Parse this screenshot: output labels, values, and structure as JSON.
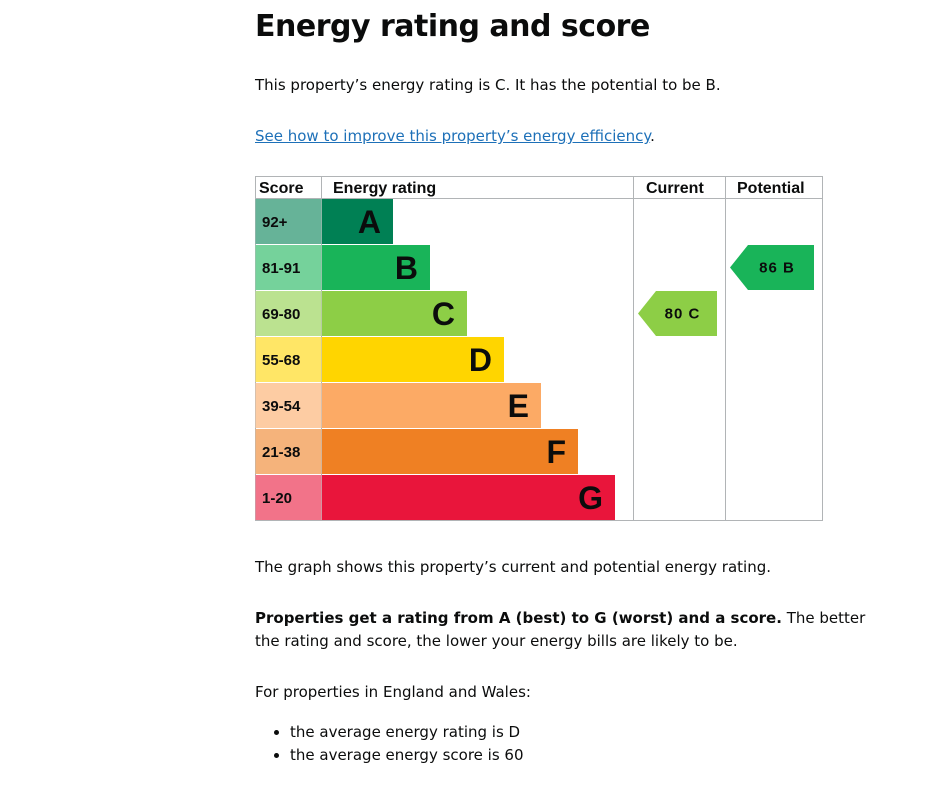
{
  "heading": "Energy rating and score",
  "intro": "This property’s energy rating is C. It has the potential to be B.",
  "improve_link": "See how to improve this property’s energy efficiency",
  "improve_period": ".",
  "chart_data": {
    "type": "table",
    "columns": [
      "Score",
      "Energy rating",
      "Current",
      "Potential"
    ],
    "bands": [
      {
        "score": "92+",
        "letter": "A",
        "color": "#008054",
        "score_bg": "#66b398"
      },
      {
        "score": "81-91",
        "letter": "B",
        "color": "#19b459",
        "score_bg": "#75d29b"
      },
      {
        "score": "69-80",
        "letter": "C",
        "color": "#8dce46",
        "score_bg": "#bbe290"
      },
      {
        "score": "55-68",
        "letter": "D",
        "color": "#ffd500",
        "score_bg": "#ffe666"
      },
      {
        "score": "39-54",
        "letter": "E",
        "color": "#fcaa65",
        "score_bg": "#fdcca3"
      },
      {
        "score": "21-38",
        "letter": "F",
        "color": "#ef8023",
        "score_bg": "#f5b37b"
      },
      {
        "score": "1-20",
        "letter": "G",
        "color": "#e9153b",
        "score_bg": "#f27389"
      }
    ],
    "current": {
      "score": 80,
      "band": "C",
      "label": "80 C",
      "color": "#8dce46"
    },
    "potential": {
      "score": 86,
      "band": "B",
      "label": "86 B",
      "color": "#19b459"
    }
  },
  "graph_caption": "The graph shows this property’s current and potential energy rating.",
  "rating_bold": "Properties get a rating from A (best) to G (worst) and a score.",
  "rating_rest_1": " The better",
  "rating_rest_2": "the rating and score, the lower your energy bills are likely to be.",
  "average_intro": "For properties in England and Wales:",
  "average_items": [
    "the average energy rating is D",
    "the average energy score is 60"
  ]
}
